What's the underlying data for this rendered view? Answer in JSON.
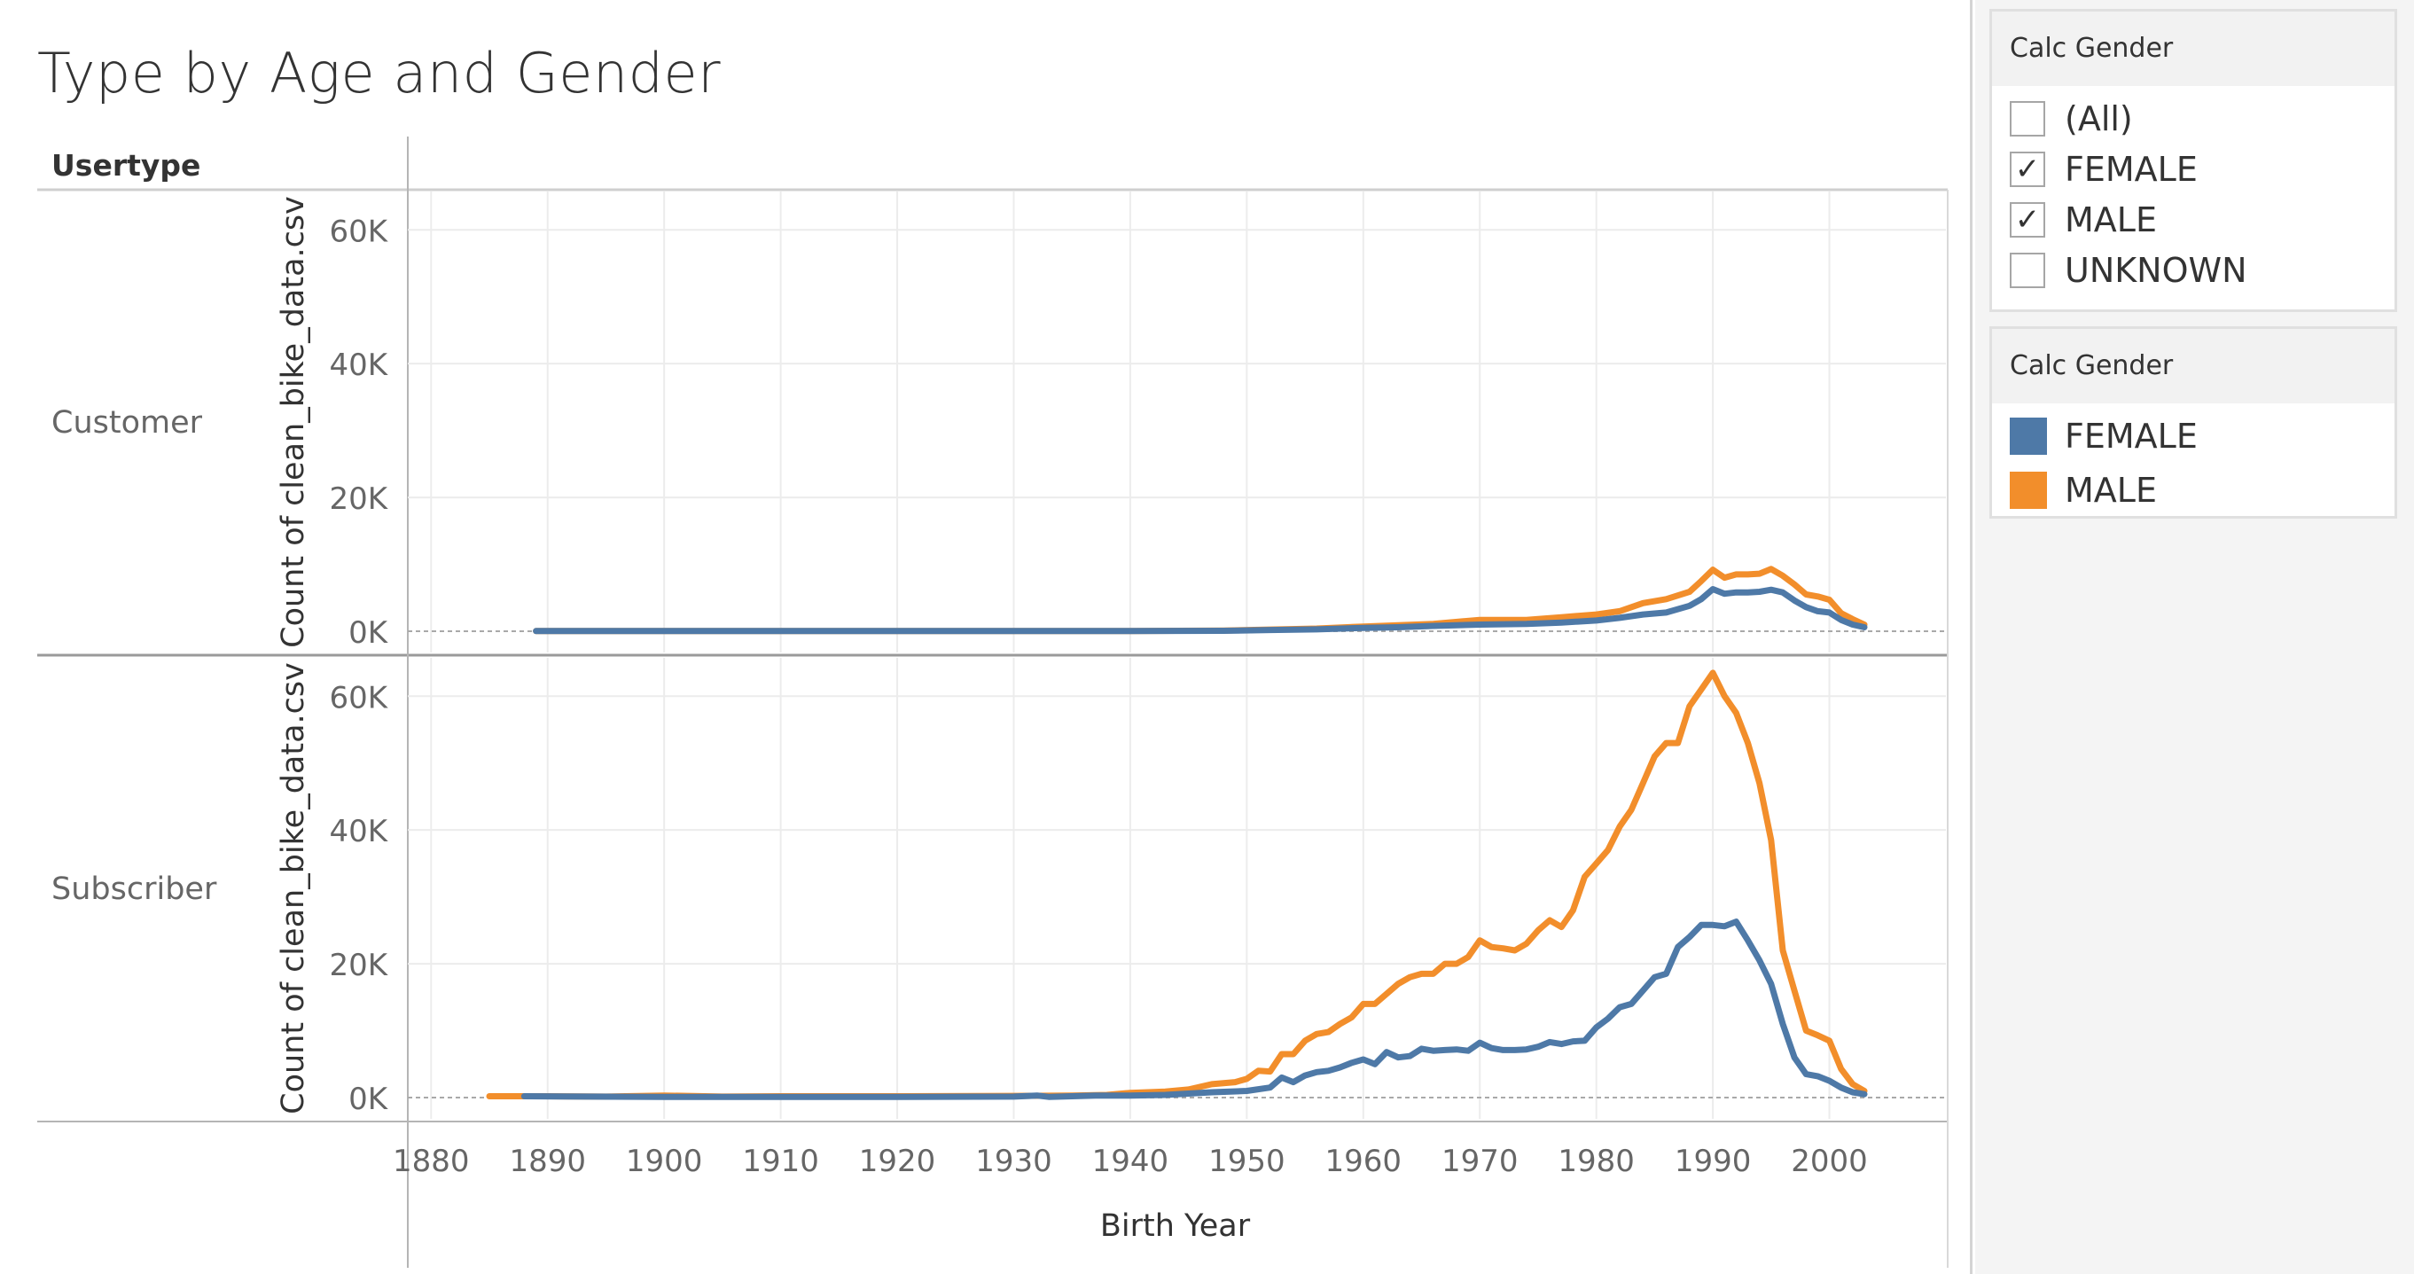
{
  "title": "Type by Age and Gender",
  "usertype_header": "Usertype",
  "x_axis_title": "Birth Year",
  "filter": {
    "title": "Calc Gender",
    "items": [
      {
        "label": "(All)",
        "checked": false
      },
      {
        "label": "FEMALE",
        "checked": true
      },
      {
        "label": "MALE",
        "checked": true
      },
      {
        "label": "UNKNOWN",
        "checked": false
      }
    ]
  },
  "legend": {
    "title": "Calc Gender",
    "items": [
      {
        "label": "FEMALE",
        "color": "#4e79a7"
      },
      {
        "label": "MALE",
        "color": "#f28e2b"
      }
    ]
  },
  "chart_data": {
    "type": "line",
    "title": "Type by Age and Gender",
    "xlabel": "Birth Year",
    "ylabel": "Count of clean_bike_data.csv",
    "xlim": [
      1878,
      2010
    ],
    "ylim": [
      0,
      66000
    ],
    "x_ticks": [
      1880,
      1890,
      1900,
      1910,
      1920,
      1930,
      1940,
      1950,
      1960,
      1970,
      1980,
      1990,
      2000
    ],
    "x_tick_labels": [
      "1880",
      "1890",
      "1900",
      "1910",
      "1920",
      "1930",
      "1940",
      "1950",
      "1960",
      "1970",
      "1980",
      "1990",
      "2000"
    ],
    "y_ticks": [
      0,
      20000,
      40000,
      60000
    ],
    "y_tick_labels": [
      "0K",
      "20K",
      "40K",
      "60K"
    ],
    "grid": true,
    "series_colors": {
      "FEMALE": "#4e79a7",
      "MALE": "#f28e2b"
    },
    "panels": [
      {
        "label": "Customer",
        "series": [
          {
            "name": "MALE",
            "points": [
              [
                1889,
                30
              ],
              [
                1900,
                30
              ],
              [
                1920,
                30
              ],
              [
                1940,
                40
              ],
              [
                1948,
                100
              ],
              [
                1952,
                250
              ],
              [
                1956,
                400
              ],
              [
                1960,
                700
              ],
              [
                1963,
                900
              ],
              [
                1966,
                1100
              ],
              [
                1970,
                1700
              ],
              [
                1974,
                1700
              ],
              [
                1977,
                2100
              ],
              [
                1980,
                2500
              ],
              [
                1982,
                3000
              ],
              [
                1984,
                4200
              ],
              [
                1986,
                4800
              ],
              [
                1988,
                5900
              ],
              [
                1989,
                7500
              ],
              [
                1990,
                9200
              ],
              [
                1991,
                8000
              ],
              [
                1992,
                8500
              ],
              [
                1993,
                8500
              ],
              [
                1994,
                8600
              ],
              [
                1995,
                9300
              ],
              [
                1996,
                8300
              ],
              [
                1997,
                7000
              ],
              [
                1998,
                5500
              ],
              [
                1999,
                5200
              ],
              [
                2000,
                4700
              ],
              [
                2001,
                2700
              ],
              [
                2002,
                1800
              ],
              [
                2003,
                1000
              ]
            ]
          },
          {
            "name": "FEMALE",
            "points": [
              [
                1889,
                30
              ],
              [
                1900,
                30
              ],
              [
                1920,
                30
              ],
              [
                1940,
                40
              ],
              [
                1948,
                70
              ],
              [
                1952,
                180
              ],
              [
                1956,
                280
              ],
              [
                1960,
                500
              ],
              [
                1963,
                600
              ],
              [
                1966,
                800
              ],
              [
                1970,
                1000
              ],
              [
                1974,
                1100
              ],
              [
                1977,
                1300
              ],
              [
                1980,
                1600
              ],
              [
                1982,
                2000
              ],
              [
                1984,
                2500
              ],
              [
                1986,
                2800
              ],
              [
                1988,
                3800
              ],
              [
                1989,
                4800
              ],
              [
                1990,
                6300
              ],
              [
                1991,
                5600
              ],
              [
                1992,
                5800
              ],
              [
                1993,
                5800
              ],
              [
                1994,
                5900
              ],
              [
                1995,
                6200
              ],
              [
                1996,
                5800
              ],
              [
                1997,
                4600
              ],
              [
                1998,
                3600
              ],
              [
                1999,
                3000
              ],
              [
                2000,
                2800
              ],
              [
                2001,
                1700
              ],
              [
                2002,
                1000
              ],
              [
                2003,
                600
              ]
            ]
          }
        ]
      },
      {
        "label": "Subscriber",
        "series": [
          {
            "name": "MALE",
            "points": [
              [
                1885,
                200
              ],
              [
                1888,
                200
              ],
              [
                1890,
                200
              ],
              [
                1895,
                150
              ],
              [
                1900,
                300
              ],
              [
                1905,
                150
              ],
              [
                1910,
                200
              ],
              [
                1920,
                200
              ],
              [
                1930,
                250
              ],
              [
                1935,
                300
              ],
              [
                1938,
                400
              ],
              [
                1940,
                700
              ],
              [
                1943,
                900
              ],
              [
                1945,
                1200
              ],
              [
                1947,
                2000
              ],
              [
                1949,
                2300
              ],
              [
                1950,
                2800
              ],
              [
                1951,
                4000
              ],
              [
                1952,
                3900
              ],
              [
                1953,
                6500
              ],
              [
                1954,
                6500
              ],
              [
                1955,
                8500
              ],
              [
                1956,
                9500
              ],
              [
                1957,
                9800
              ],
              [
                1958,
                11000
              ],
              [
                1959,
                12000
              ],
              [
                1960,
                14000
              ],
              [
                1961,
                14000
              ],
              [
                1962,
                15500
              ],
              [
                1963,
                17000
              ],
              [
                1964,
                18000
              ],
              [
                1965,
                18500
              ],
              [
                1966,
                18500
              ],
              [
                1967,
                20000
              ],
              [
                1968,
                20000
              ],
              [
                1969,
                21000
              ],
              [
                1970,
                23500
              ],
              [
                1971,
                22500
              ],
              [
                1972,
                22300
              ],
              [
                1973,
                22000
              ],
              [
                1974,
                23000
              ],
              [
                1975,
                25000
              ],
              [
                1976,
                26500
              ],
              [
                1977,
                25500
              ],
              [
                1978,
                28000
              ],
              [
                1979,
                33000
              ],
              [
                1980,
                35000
              ],
              [
                1981,
                37000
              ],
              [
                1982,
                40500
              ],
              [
                1983,
                43000
              ],
              [
                1984,
                47000
              ],
              [
                1985,
                51000
              ],
              [
                1986,
                53000
              ],
              [
                1987,
                53000
              ],
              [
                1988,
                58500
              ],
              [
                1989,
                61000
              ],
              [
                1990,
                63500
              ],
              [
                1991,
                60000
              ],
              [
                1992,
                57500
              ],
              [
                1993,
                53000
              ],
              [
                1994,
                47000
              ],
              [
                1995,
                38500
              ],
              [
                1996,
                22000
              ],
              [
                1997,
                16000
              ],
              [
                1998,
                10000
              ],
              [
                1999,
                9300
              ],
              [
                2000,
                8500
              ],
              [
                2001,
                4300
              ],
              [
                2002,
                2000
              ],
              [
                2003,
                1000
              ]
            ]
          },
          {
            "name": "FEMALE",
            "points": [
              [
                1888,
                200
              ],
              [
                1900,
                100
              ],
              [
                1910,
                100
              ],
              [
                1920,
                100
              ],
              [
                1930,
                150
              ],
              [
                1932,
                300
              ],
              [
                1933,
                100
              ],
              [
                1937,
                300
              ],
              [
                1940,
                300
              ],
              [
                1943,
                400
              ],
              [
                1945,
                600
              ],
              [
                1947,
                800
              ],
              [
                1950,
                1000
              ],
              [
                1952,
                1500
              ],
              [
                1953,
                3000
              ],
              [
                1954,
                2300
              ],
              [
                1955,
                3300
              ],
              [
                1956,
                3800
              ],
              [
                1957,
                4000
              ],
              [
                1958,
                4500
              ],
              [
                1959,
                5200
              ],
              [
                1960,
                5700
              ],
              [
                1961,
                5000
              ],
              [
                1962,
                6800
              ],
              [
                1963,
                6000
              ],
              [
                1964,
                6200
              ],
              [
                1965,
                7300
              ],
              [
                1966,
                7000
              ],
              [
                1967,
                7100
              ],
              [
                1968,
                7200
              ],
              [
                1969,
                7000
              ],
              [
                1970,
                8200
              ],
              [
                1971,
                7400
              ],
              [
                1972,
                7100
              ],
              [
                1973,
                7100
              ],
              [
                1974,
                7200
              ],
              [
                1975,
                7600
              ],
              [
                1976,
                8300
              ],
              [
                1977,
                8000
              ],
              [
                1978,
                8400
              ],
              [
                1979,
                8500
              ],
              [
                1980,
                10500
              ],
              [
                1981,
                11800
              ],
              [
                1982,
                13500
              ],
              [
                1983,
                14000
              ],
              [
                1984,
                16000
              ],
              [
                1985,
                18000
              ],
              [
                1986,
                18500
              ],
              [
                1987,
                22500
              ],
              [
                1988,
                24000
              ],
              [
                1989,
                25800
              ],
              [
                1990,
                25800
              ],
              [
                1991,
                25600
              ],
              [
                1992,
                26300
              ],
              [
                1993,
                23500
              ],
              [
                1994,
                20500
              ],
              [
                1995,
                17000
              ],
              [
                1996,
                11000
              ],
              [
                1997,
                6000
              ],
              [
                1998,
                3500
              ],
              [
                1999,
                3200
              ],
              [
                2000,
                2500
              ],
              [
                2001,
                1500
              ],
              [
                2002,
                800
              ],
              [
                2003,
                500
              ]
            ]
          }
        ]
      }
    ]
  }
}
